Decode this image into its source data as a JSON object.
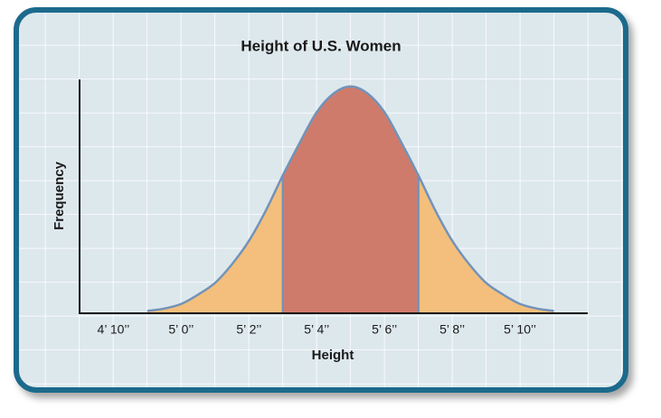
{
  "chart_data": {
    "type": "area",
    "title": "Height of U.S. Women",
    "x_label": "Height",
    "y_label": "Frequency",
    "x": [
      59,
      59.5,
      60,
      60.5,
      61,
      61.5,
      62,
      62.5,
      63,
      63.5,
      64,
      64.5,
      65,
      65.5,
      66,
      66.5,
      67,
      67.5,
      68,
      68.5,
      69,
      69.5,
      70,
      70.5,
      71
    ],
    "values": [
      0.01,
      0.02,
      0.04,
      0.08,
      0.13,
      0.21,
      0.31,
      0.44,
      0.59,
      0.73,
      0.86,
      0.94,
      0.97,
      0.94,
      0.86,
      0.73,
      0.59,
      0.44,
      0.31,
      0.21,
      0.13,
      0.08,
      0.04,
      0.02,
      0.01
    ],
    "color": "#f4bf7c",
    "line_color": "#7393b8",
    "highlight": [
      63,
      67
    ],
    "highlight_color": "#cf7b6c",
    "xlim": [
      57,
      72
    ],
    "ylim": [
      0,
      1
    ],
    "xticks": [
      {
        "value": 58,
        "label": "4’ 10’’"
      },
      {
        "value": 60,
        "label": "5’ 0’’"
      },
      {
        "value": 62,
        "label": "5’ 2’’"
      },
      {
        "value": 64,
        "label": "5’ 4’’"
      },
      {
        "value": 66,
        "label": "5’ 6’’"
      },
      {
        "value": 68,
        "label": "5’ 8’’"
      },
      {
        "value": 70,
        "label": "5’ 10’’"
      }
    ]
  }
}
